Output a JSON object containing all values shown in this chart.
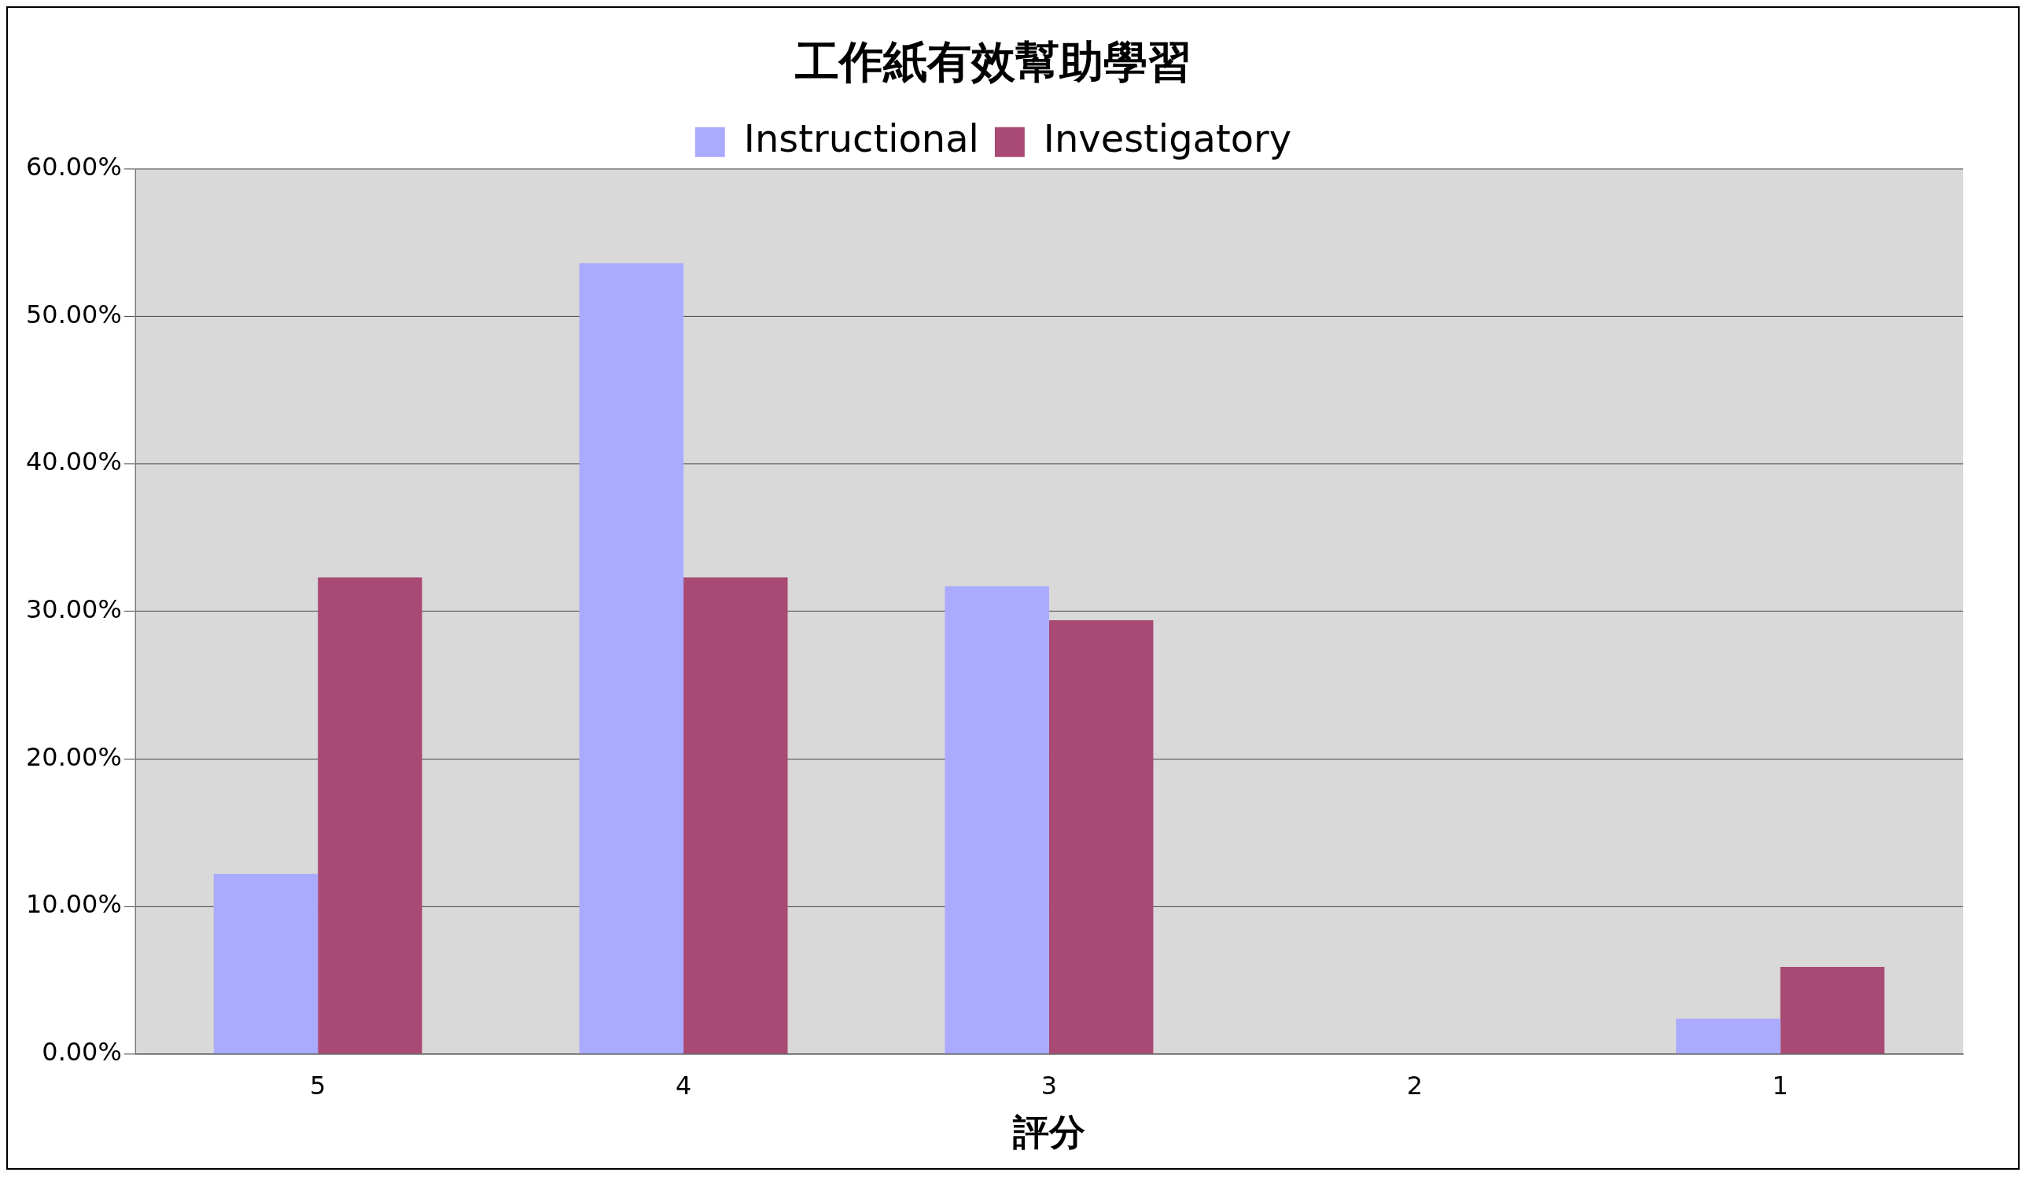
{
  "chart_data": {
    "type": "bar",
    "title": "工作紙有效幫助學習",
    "xlabel": "評分",
    "categories": [
      "5",
      "4",
      "3",
      "2",
      "1"
    ],
    "series": [
      {
        "name": "Instructional",
        "color": "#aaaaff",
        "values": [
          12.2,
          53.6,
          31.7,
          0,
          2.4
        ]
      },
      {
        "name": "Investigatory",
        "color": "#a94a75",
        "values": [
          32.3,
          32.3,
          29.4,
          0,
          5.9
        ]
      }
    ],
    "ylim": [
      0,
      60
    ],
    "yticks": [
      {
        "value": 0,
        "label": "0.00%"
      },
      {
        "value": 10,
        "label": "10.00%"
      },
      {
        "value": 20,
        "label": "20.00%"
      },
      {
        "value": 30,
        "label": "30.00%"
      },
      {
        "value": 40,
        "label": "40.00%"
      },
      {
        "value": 50,
        "label": "50.00%"
      },
      {
        "value": 60,
        "label": "60.00%"
      }
    ],
    "grid": "y",
    "legend": "top"
  }
}
